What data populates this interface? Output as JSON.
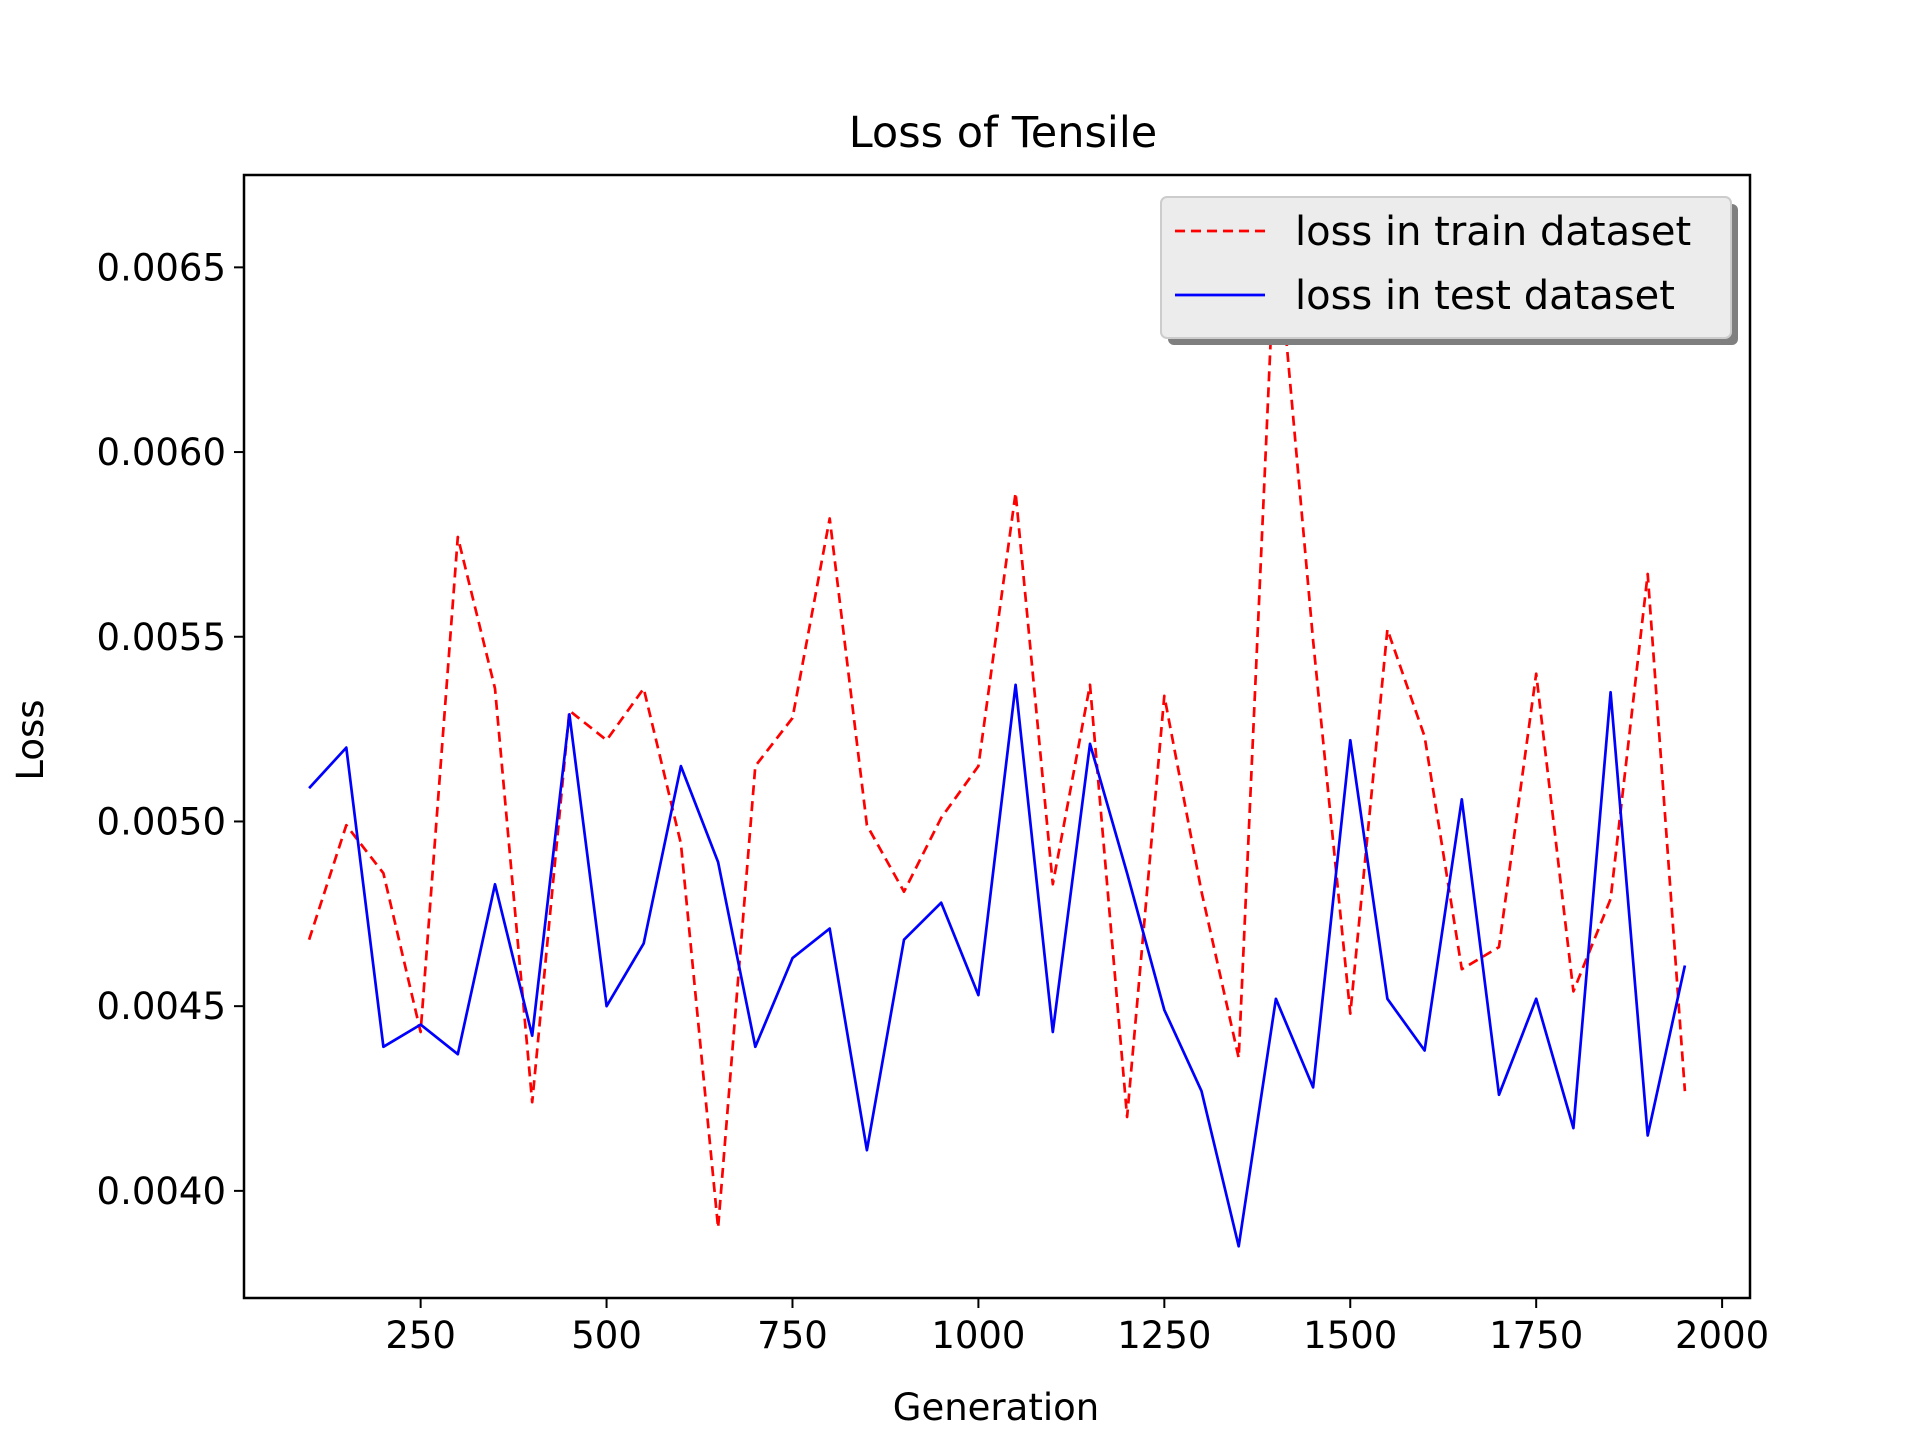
{
  "chart_data": {
    "type": "line",
    "title": "Loss of Tensile",
    "xlabel": "Generation",
    "ylabel": "Loss",
    "xlim": [
      12.5,
      2037.5
    ],
    "ylim": [
      0.00371,
      0.00675
    ],
    "xticks": [
      250,
      500,
      750,
      1000,
      1250,
      1500,
      1750,
      2000
    ],
    "xtick_labels": [
      "250",
      "500",
      "750",
      "1000",
      "1250",
      "1500",
      "1750",
      "2000"
    ],
    "yticks": [
      0.004,
      0.0045,
      0.005,
      0.0055,
      0.006,
      0.0065
    ],
    "ytick_labels": [
      "0.0040",
      "0.0045",
      "0.0050",
      "0.0055",
      "0.0060",
      "0.0065"
    ],
    "grid": false,
    "legend_position": "top-right",
    "x": [
      100,
      150,
      200,
      250,
      300,
      350,
      400,
      450,
      500,
      550,
      600,
      650,
      700,
      750,
      800,
      850,
      900,
      950,
      1000,
      1050,
      1100,
      1150,
      1200,
      1250,
      1300,
      1350,
      1400,
      1450,
      1500,
      1550,
      1600,
      1650,
      1700,
      1750,
      1800,
      1850,
      1900,
      1950
    ],
    "series": [
      {
        "name": "loss in train dataset",
        "color": "#ff0000",
        "style": "dashed",
        "values": [
          0.00468,
          0.00499,
          0.00486,
          0.00443,
          0.00577,
          0.00536,
          0.00424,
          0.0053,
          0.00522,
          0.00536,
          0.00494,
          0.0039,
          0.00515,
          0.00528,
          0.00582,
          0.00499,
          0.00481,
          0.00501,
          0.00515,
          0.00589,
          0.00483,
          0.00537,
          0.0042,
          0.00534,
          0.00481,
          0.00436,
          0.00662,
          0.00549,
          0.00448,
          0.00552,
          0.00523,
          0.0046,
          0.00466,
          0.0054,
          0.00454,
          0.00479,
          0.00567,
          0.00427
        ]
      },
      {
        "name": "loss in test dataset",
        "color": "#0000ff",
        "style": "solid",
        "values": [
          0.00509,
          0.0052,
          0.00439,
          0.00445,
          0.00437,
          0.00483,
          0.00442,
          0.00529,
          0.0045,
          0.00467,
          0.00515,
          0.00489,
          0.00439,
          0.00463,
          0.00471,
          0.00411,
          0.00468,
          0.00478,
          0.00453,
          0.00537,
          0.00443,
          0.00521,
          0.00486,
          0.00449,
          0.00427,
          0.00385,
          0.00452,
          0.00428,
          0.00522,
          0.00452,
          0.00438,
          0.00506,
          0.00426,
          0.00452,
          0.00417,
          0.00535,
          0.00415,
          0.00461
        ]
      }
    ]
  }
}
